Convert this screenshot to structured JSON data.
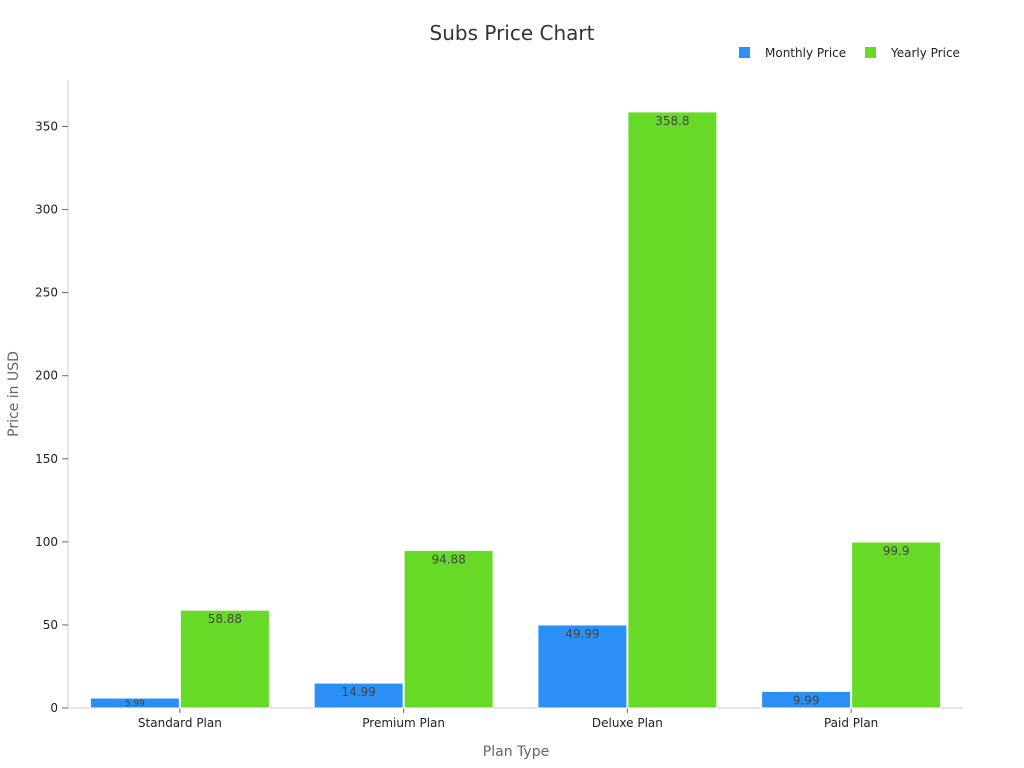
{
  "chart_data": {
    "type": "bar",
    "title": "Subs Price Chart",
    "xlabel": "Plan Type",
    "ylabel": "Price in USD",
    "categories": [
      "Standard Plan",
      "Premium Plan",
      "Deluxe Plan",
      "Paid Plan"
    ],
    "series": [
      {
        "name": "Monthly Price",
        "values": [
          5.99,
          14.99,
          49.99,
          9.99
        ],
        "color": "#2b90f5",
        "labels": [
          "5.99",
          "14.99",
          "49.99",
          "9.99"
        ]
      },
      {
        "name": "Yearly Price",
        "values": [
          58.88,
          94.88,
          358.8,
          99.9
        ],
        "color": "#66da26",
        "labels": [
          "58.88",
          "94.88",
          "358.8",
          "99.9"
        ]
      }
    ],
    "ylim": [
      0,
      378
    ],
    "yticks": [
      0,
      50,
      100,
      150,
      200,
      250,
      300,
      350
    ],
    "grid": false,
    "legend": "top-right"
  }
}
